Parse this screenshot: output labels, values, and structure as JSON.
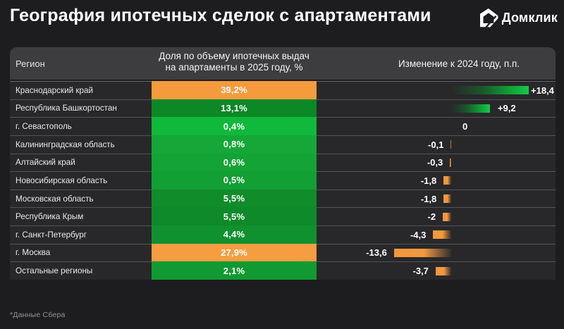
{
  "page": {
    "background_color": "#1d1d1f",
    "title": "География ипотечных сделок с апартаментами",
    "footnote": "*Данные Сбера"
  },
  "brand": {
    "logo_icon": "domclick-house-icon",
    "logo_text": "Домклик"
  },
  "table": {
    "header": {
      "region": "Регион",
      "share_line1": "Доля по объему ипотечных выдач",
      "share_line2": "на апартаменты в 2025 году, %",
      "change": "Изменение к 2024 году, п.п."
    },
    "colors": {
      "header_bg": "#3d3d40",
      "row_bg": "#28282b",
      "orange_cell": "#f59b3d",
      "positive_bar_tip": "#12c746",
      "negative_bar": "#f29639"
    },
    "rows": [
      {
        "region": "Краснодарский край",
        "share": "39,2%",
        "cell_color": "#f59b3d",
        "change_label": "+18,4",
        "change_value": 18.4
      },
      {
        "region": "Республика Башкортостан",
        "share": "13,1%",
        "cell_color": "#0d8826",
        "change_label": "+9,2",
        "change_value": 9.2
      },
      {
        "region": "г. Севастополь",
        "share": "0,4%",
        "cell_color": "#10b93c",
        "change_label": "0",
        "change_value": 0
      },
      {
        "region": "Калининградская область",
        "share": "0,8%",
        "cell_color": "#15a737",
        "change_label": "-0,1",
        "change_value": -0.1
      },
      {
        "region": "Алтайский край",
        "share": "0,6%",
        "cell_color": "#14a335",
        "change_label": "-0,3",
        "change_value": -0.3
      },
      {
        "region": "Новосибирская область",
        "share": "0,5%",
        "cell_color": "#129f33",
        "change_label": "-1,8",
        "change_value": -1.8
      },
      {
        "region": "Московская область",
        "share": "5,5%",
        "cell_color": "#108c2b",
        "change_label": "-1,8",
        "change_value": -1.8
      },
      {
        "region": "Республика Крым",
        "share": "5,5%",
        "cell_color": "#0f8a2a",
        "change_label": "-2",
        "change_value": -2
      },
      {
        "region": "г. Санкт-Петербург",
        "share": "4,4%",
        "cell_color": "#109130",
        "change_label": "-4,3",
        "change_value": -4.3
      },
      {
        "region": "г. Москва",
        "share": "27,9%",
        "cell_color": "#f69d42",
        "change_label": "-13,6",
        "change_value": -13.6
      },
      {
        "region": "Остальные регионы",
        "share": "2,1%",
        "cell_color": "#119a31",
        "change_label": "-3,7",
        "change_value": -3.7
      }
    ]
  },
  "chart_data": {
    "type": "table",
    "title": "География ипотечных сделок с апартаментами",
    "categories": [
      "Краснодарский край",
      "Республика Башкортостан",
      "г. Севастополь",
      "Калининградская область",
      "Алтайский край",
      "Новосибирская область",
      "Московская область",
      "Республика Крым",
      "г. Санкт-Петербург",
      "г. Москва",
      "Остальные регионы"
    ],
    "series": [
      {
        "name": "Доля по объему ипотечных выдач на апартаменты в 2025 году, %",
        "values": [
          39.2,
          13.1,
          0.4,
          0.8,
          0.6,
          0.5,
          5.5,
          5.5,
          4.4,
          27.9,
          2.1
        ]
      },
      {
        "name": "Изменение к 2024 году, п.п.",
        "values": [
          18.4,
          9.2,
          0,
          -0.1,
          -0.3,
          -1.8,
          -1.8,
          -2,
          -4.3,
          -13.6,
          -3.7
        ]
      }
    ],
    "bar_chart_note": "second series drawn as diverging bars: positive green gradient growing right from baseline, negative orange gradient growing left from baseline",
    "source": "*Данные Сбера"
  }
}
